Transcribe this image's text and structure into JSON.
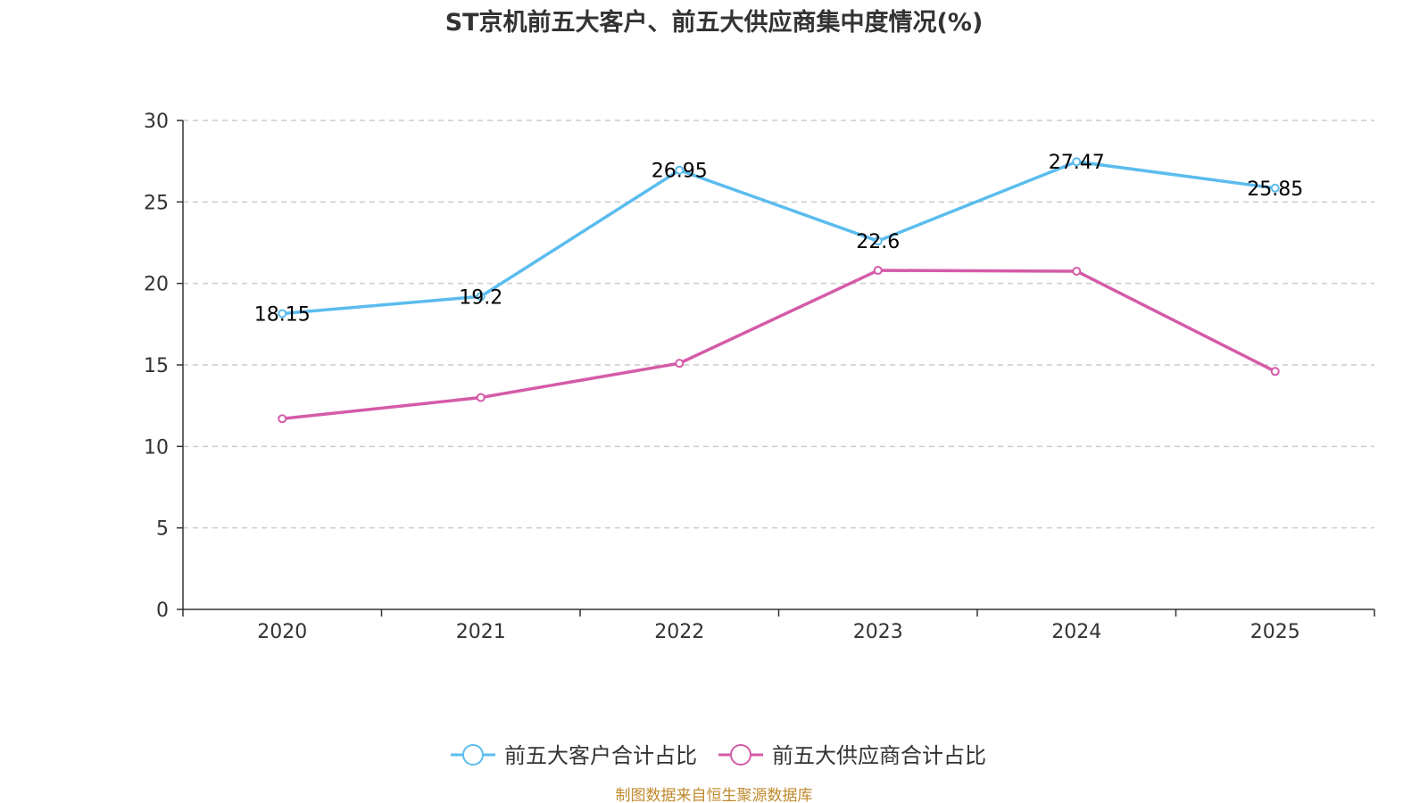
{
  "chart_data": {
    "type": "line",
    "title": "ST京机前五大客户、前五大供应商集中度情况(%)",
    "categories": [
      "2020",
      "2021",
      "2022",
      "2023",
      "2024",
      "2025"
    ],
    "ylim": [
      0,
      30
    ],
    "yticks": [
      0,
      5,
      10,
      15,
      20,
      25,
      30
    ],
    "grid": true,
    "legend_position": "bottom-center",
    "series": [
      {
        "name": "前五大客户合计占比",
        "color": "#5bbcee",
        "values": [
          18.15,
          19.2,
          26.95,
          22.6,
          27.47,
          25.85
        ],
        "labels": [
          "18.15",
          "19.2",
          "26.95",
          "22.6",
          "27.47",
          "25.85"
        ]
      },
      {
        "name": "前五大供应商合计占比",
        "color": "#d45ba8",
        "values": [
          11.7,
          13.0,
          15.1,
          20.8,
          20.75,
          14.6
        ],
        "labels": []
      }
    ]
  },
  "source_text": "制图数据来自恒生聚源数据库",
  "source_color": "#c08a2e"
}
